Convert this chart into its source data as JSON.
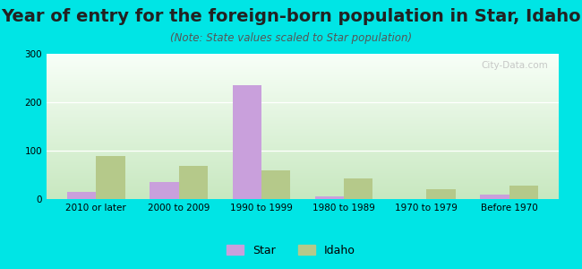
{
  "title": "Year of entry for the foreign-born population in Star, Idaho",
  "subtitle": "(Note: State values scaled to Star population)",
  "categories": [
    "2010 or later",
    "2000 to 2009",
    "1990 to 1999",
    "1980 to 1989",
    "1970 to 1979",
    "Before 1970"
  ],
  "star_values": [
    15,
    35,
    235,
    5,
    0,
    10
  ],
  "idaho_values": [
    88,
    68,
    60,
    42,
    20,
    27
  ],
  "star_color": "#c9a0dc",
  "idaho_color": "#b5c98a",
  "bg_outer": "#00e5e5",
  "bg_plot_top": "#f8fff8",
  "bg_plot_bottom": "#c8e8c0",
  "ylim": [
    0,
    300
  ],
  "yticks": [
    0,
    100,
    200,
    300
  ],
  "title_fontsize": 14,
  "subtitle_fontsize": 8.5,
  "tick_fontsize": 7.5,
  "legend_fontsize": 9,
  "bar_width": 0.35,
  "watermark_text": "City-Data.com"
}
